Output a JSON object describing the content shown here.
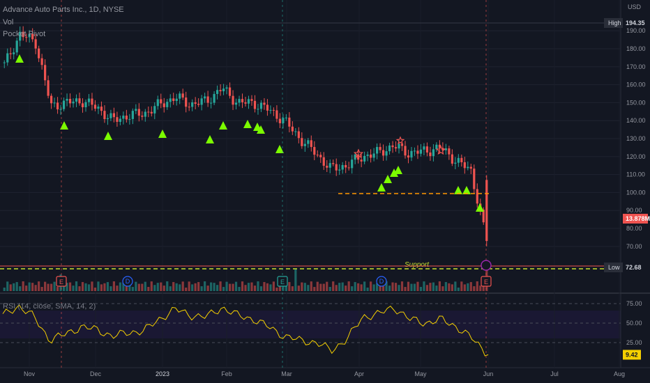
{
  "header": {
    "symbol_title": "Advance Auto Parts Inc., 1D, NYSE",
    "vol_label": "Vol",
    "indicator_label": "Pocket Pivot"
  },
  "rsi_panel": {
    "legend": "RSI (14, close, SMA, 14, 2)",
    "current_value": "9.42",
    "axis_ticks": [
      "75.00",
      "50.00",
      "25.00"
    ]
  },
  "price_axis": {
    "currency": "USD",
    "ticks": [
      "190.00",
      "180.00",
      "170.00",
      "160.00",
      "150.00",
      "140.00",
      "130.00",
      "120.00",
      "110.00",
      "100.00",
      "90.00",
      "80.00",
      "70.00"
    ],
    "high_label": "High",
    "high_value": "194.35",
    "low_label": "Low",
    "low_value": "72.68",
    "volume_badge": "13.878M"
  },
  "time_axis": {
    "labels": [
      "Nov",
      "Dec",
      "2023",
      "Feb",
      "Mar",
      "Apr",
      "May",
      "Jun",
      "Jul",
      "Aug"
    ]
  },
  "annotations": {
    "support_label": "Support",
    "earnings_marker": "E",
    "dividend_marker": "D"
  },
  "colors": {
    "background": "#131722",
    "up": "#26a69a",
    "down": "#ef5350",
    "pivot_triangle": "#7cfc00",
    "support_line": "#c6e02f",
    "resistance_line": "#ff9800",
    "rsi_line": "#f5d000",
    "star": "#ef5350"
  },
  "chart_data": [
    {
      "type": "line",
      "title": "Advance Auto Parts Inc., 1D, NYSE",
      "series": [
        {
          "x": [
            "2022-10-24",
            "2022-10-31",
            "2022-11-07",
            "2022-11-14",
            "2022-11-21",
            "2022-11-28",
            "2022-12-05",
            "2022-12-12",
            "2022-12-19",
            "2022-12-26",
            "2023-01-02",
            "2023-01-09",
            "2023-01-16",
            "2023-01-23",
            "2023-01-30",
            "2023-02-06",
            "2023-02-13",
            "2023-02-20",
            "2023-02-27",
            "2023-03-06",
            "2023-03-13",
            "2023-03-20",
            "2023-03-27",
            "2023-04-03",
            "2023-04-10",
            "2023-04-17",
            "2023-04-24",
            "2023-05-01",
            "2023-05-08",
            "2023-05-15",
            "2023-05-22",
            "2023-05-29"
          ],
          "values": [
            171,
            188,
            184,
            148,
            150,
            151,
            147,
            140,
            143,
            144,
            149,
            153,
            149,
            151,
            158,
            150,
            150,
            146,
            140,
            130,
            122,
            113,
            115,
            120,
            122,
            126,
            122,
            123,
            125,
            118,
            112,
            73
          ]
        }
      ],
      "ylim": [
        65,
        200
      ],
      "annotations": [
        "High 194.35",
        "Low 72.68",
        "Support",
        "13.878M"
      ]
    },
    {
      "type": "line",
      "title": "RSI (14, close, SMA, 14, 2)",
      "series": [
        {
          "x": [
            "2022-10-24",
            "2022-10-31",
            "2022-11-07",
            "2022-11-14",
            "2022-11-21",
            "2022-11-28",
            "2022-12-05",
            "2022-12-12",
            "2022-12-19",
            "2022-12-26",
            "2023-01-02",
            "2023-01-09",
            "2023-01-16",
            "2023-01-23",
            "2023-01-30",
            "2023-02-06",
            "2023-02-13",
            "2023-02-20",
            "2023-02-27",
            "2023-03-06",
            "2023-03-13",
            "2023-03-20",
            "2023-03-27",
            "2023-04-03",
            "2023-04-10",
            "2023-04-17",
            "2023-04-24",
            "2023-05-01",
            "2023-05-08",
            "2023-05-15",
            "2023-05-22",
            "2023-05-29"
          ],
          "values": [
            60,
            72,
            58,
            28,
            36,
            45,
            42,
            33,
            38,
            40,
            55,
            68,
            60,
            58,
            70,
            60,
            55,
            45,
            33,
            28,
            25,
            15,
            30,
            58,
            62,
            70,
            55,
            50,
            55,
            45,
            30,
            9.42
          ]
        }
      ],
      "ylim": [
        0,
        85
      ],
      "yticks": [
        25,
        50,
        75
      ]
    }
  ]
}
